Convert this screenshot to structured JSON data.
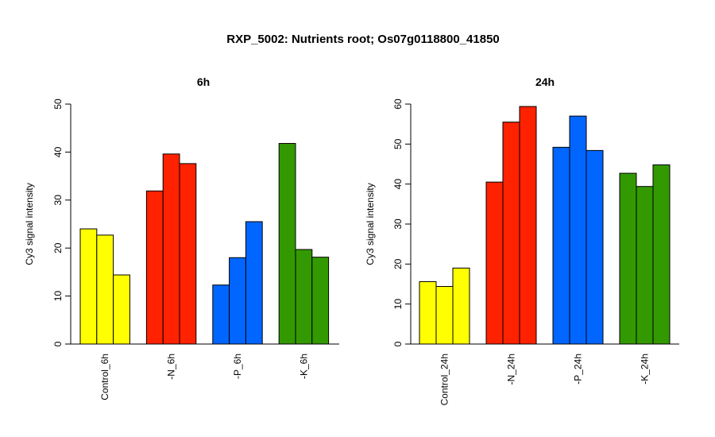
{
  "title": "RXP_5002: Nutrients root; Os07g0118800_41850",
  "chart_data": [
    {
      "type": "bar",
      "title": "6h",
      "ylabel": "Cy3 signal intensity",
      "ylim": [
        0,
        50
      ],
      "yticks": [
        0,
        10,
        20,
        30,
        40,
        50
      ],
      "groups": [
        {
          "label": "Control_6h",
          "color": "#ffff00",
          "values": [
            24.0,
            22.7,
            14.4
          ]
        },
        {
          "label": "-N_6h",
          "color": "#ff2200",
          "values": [
            31.9,
            39.6,
            37.6
          ]
        },
        {
          "label": "-P_6h",
          "color": "#0066ff",
          "values": [
            12.3,
            18.0,
            25.5
          ]
        },
        {
          "label": "-K_6h",
          "color": "#339900",
          "values": [
            41.8,
            19.7,
            18.1
          ]
        }
      ]
    },
    {
      "type": "bar",
      "title": "24h",
      "ylabel": "Cy3 signal intensity",
      "ylim": [
        0,
        60
      ],
      "yticks": [
        0,
        10,
        20,
        30,
        40,
        50,
        60
      ],
      "groups": [
        {
          "label": "Control_24h",
          "color": "#ffff00",
          "values": [
            15.6,
            14.4,
            19.0
          ]
        },
        {
          "label": "-N_24h",
          "color": "#ff2200",
          "values": [
            40.5,
            55.5,
            59.4
          ]
        },
        {
          "label": "-P_24h",
          "color": "#0066ff",
          "values": [
            49.2,
            57.0,
            48.4
          ]
        },
        {
          "label": "-K_24h",
          "color": "#339900",
          "values": [
            42.7,
            39.4,
            44.8
          ]
        }
      ]
    }
  ]
}
